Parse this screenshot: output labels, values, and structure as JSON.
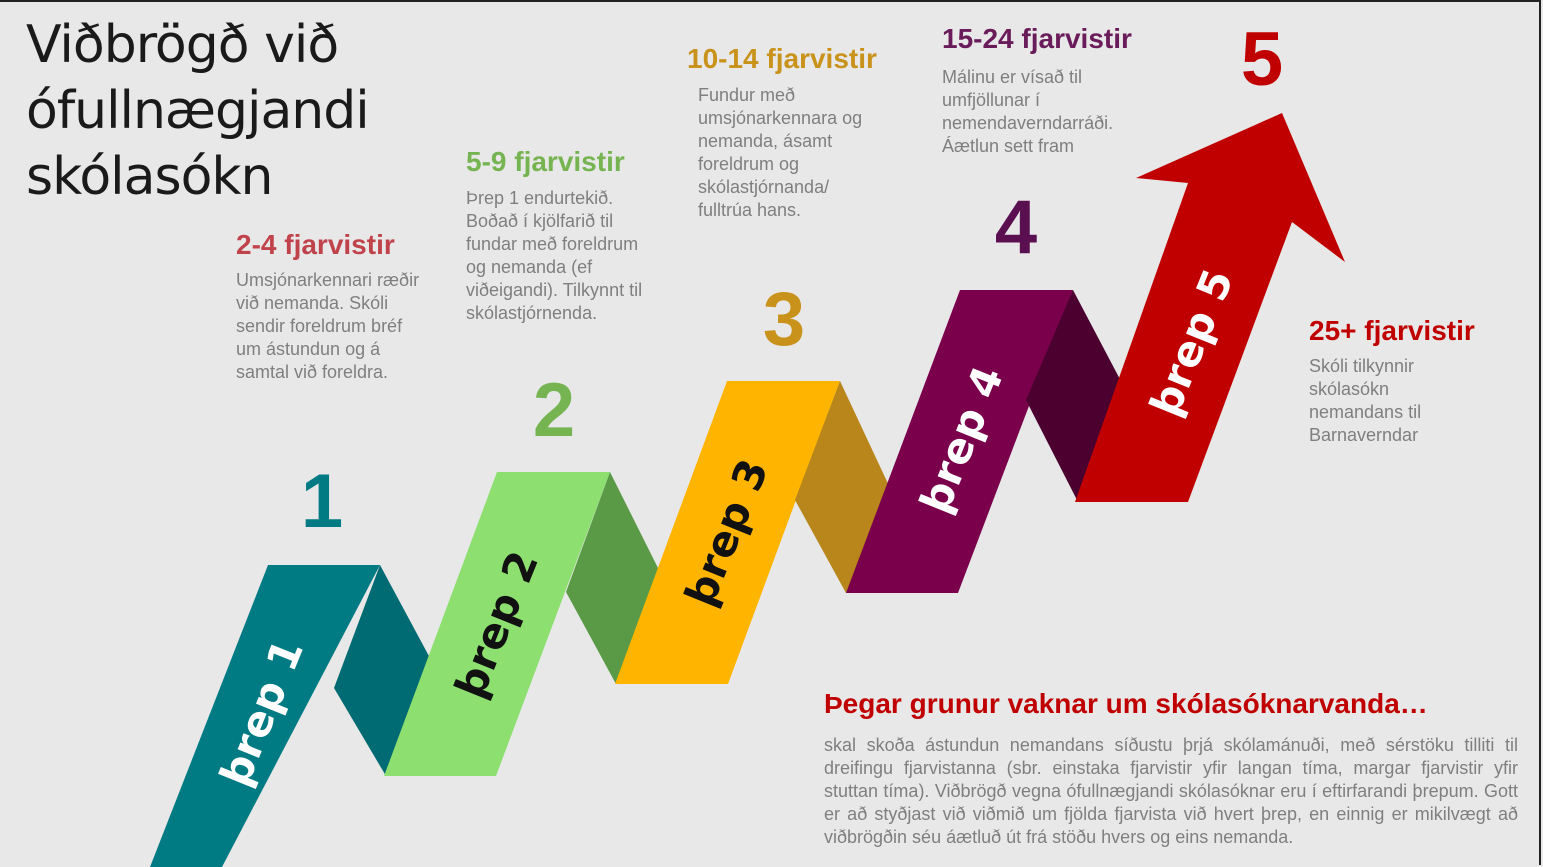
{
  "title": "Viðbrögð við ófullnægjandi skólasókn",
  "colors": {
    "step1": "#007b83",
    "step2": "#8ddf70",
    "step3": "#ffb500",
    "step4": "#7a004c",
    "step5": "#c00000",
    "step2_head": "#76b451",
    "step3_head": "#c9921a",
    "step4_head": "#6a1b5a",
    "step1_head": "#c0434b"
  },
  "steps": [
    {
      "number": "1",
      "band_label": "þrep 1",
      "heading": "2-4 fjarvistir",
      "description": "Umsjónarkennari ræðir við nemanda. Skóli sendir foreldrum bréf um ástundun og á samtal  við foreldra."
    },
    {
      "number": "2",
      "band_label": "þrep 2",
      "heading": "5-9 fjarvistir",
      "description": "Þrep 1 endurtekið. Boðað í kjölfarið til fundar með foreldrum og nemanda (ef viðeigandi). Tilkynnt til skólastjórnenda."
    },
    {
      "number": "3",
      "band_label": "þrep 3",
      "heading": "10-14 fjarvistir",
      "description": "Fundur með umsjónarkennara og nemanda, ásamt foreldrum og skólastjórnanda/ fulltrúa hans."
    },
    {
      "number": "4",
      "band_label": "þrep 4",
      "heading": "15-24 fjarvistir",
      "description": "Málinu er vísað til umfjöllunar í nemendaverndarráði. Áætlun sett fram"
    },
    {
      "number": "5",
      "band_label": "þrep 5",
      "heading": "25+ fjarvistir",
      "description": "Skóli tilkynnir skólasókn nemandans til Barnaverndar"
    }
  ],
  "callout": {
    "heading": "Þegar grunur vaknar um skólasóknarvanda…",
    "body": "skal skoða ástundun nemandans síðustu þrjá skólamánuði, með sérstöku tilliti til dreifingu fjarvistanna (sbr. einstaka fjarvistir yfir langan tíma, margar fjarvistir yfir stuttan tíma). Viðbrögð vegna ófullnægjandi skólasóknar eru í eftirfarandi þrepum. Gott er að styðjast við viðmið um fjölda fjarvista við hvert þrep, en einnig er mikilvægt að viðbrögðin séu áætluð út frá stöðu hvers og eins nemanda."
  }
}
